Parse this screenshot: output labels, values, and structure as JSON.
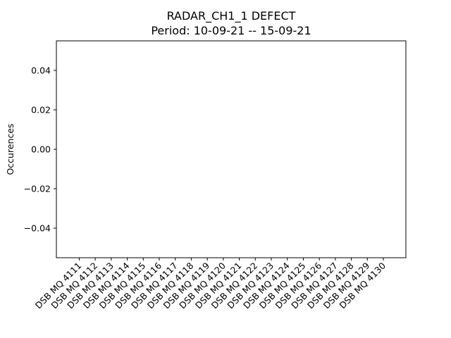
{
  "chart_data": {
    "type": "bar",
    "title": "RADAR_CH1_1 DEFECT",
    "subtitle": "Period: 10-09-21 -- 15-09-21",
    "xlabel": "",
    "ylabel": "Occurences",
    "categories": [
      "DSB MQ 4111",
      "DSB MQ 4112",
      "DSB MQ 4113",
      "DSB MQ 4114",
      "DSB MQ 4115",
      "DSB MQ 4116",
      "DSB MQ 4117",
      "DSB MQ 4118",
      "DSB MQ 4119",
      "DSB MQ 4120",
      "DSB MQ 4121",
      "DSB MQ 4122",
      "DSB MQ 4123",
      "DSB MQ 4124",
      "DSB MQ 4125",
      "DSB MQ 4126",
      "DSB MQ 4127",
      "DSB MQ 4128",
      "DSB MQ 4129",
      "DSB MQ 4130"
    ],
    "values": [
      0,
      0,
      0,
      0,
      0,
      0,
      0,
      0,
      0,
      0,
      0,
      0,
      0,
      0,
      0,
      0,
      0,
      0,
      0,
      0
    ],
    "ylim": [
      -0.055,
      0.055
    ],
    "yticks": [
      -0.04,
      -0.02,
      0.0,
      0.02,
      0.04
    ],
    "ytick_labels": [
      "−0.04",
      "−0.02",
      "0.00",
      "0.02",
      "0.04"
    ],
    "grid": false,
    "colors": {
      "bar": "#1f77b4",
      "axes": "#000000"
    }
  }
}
